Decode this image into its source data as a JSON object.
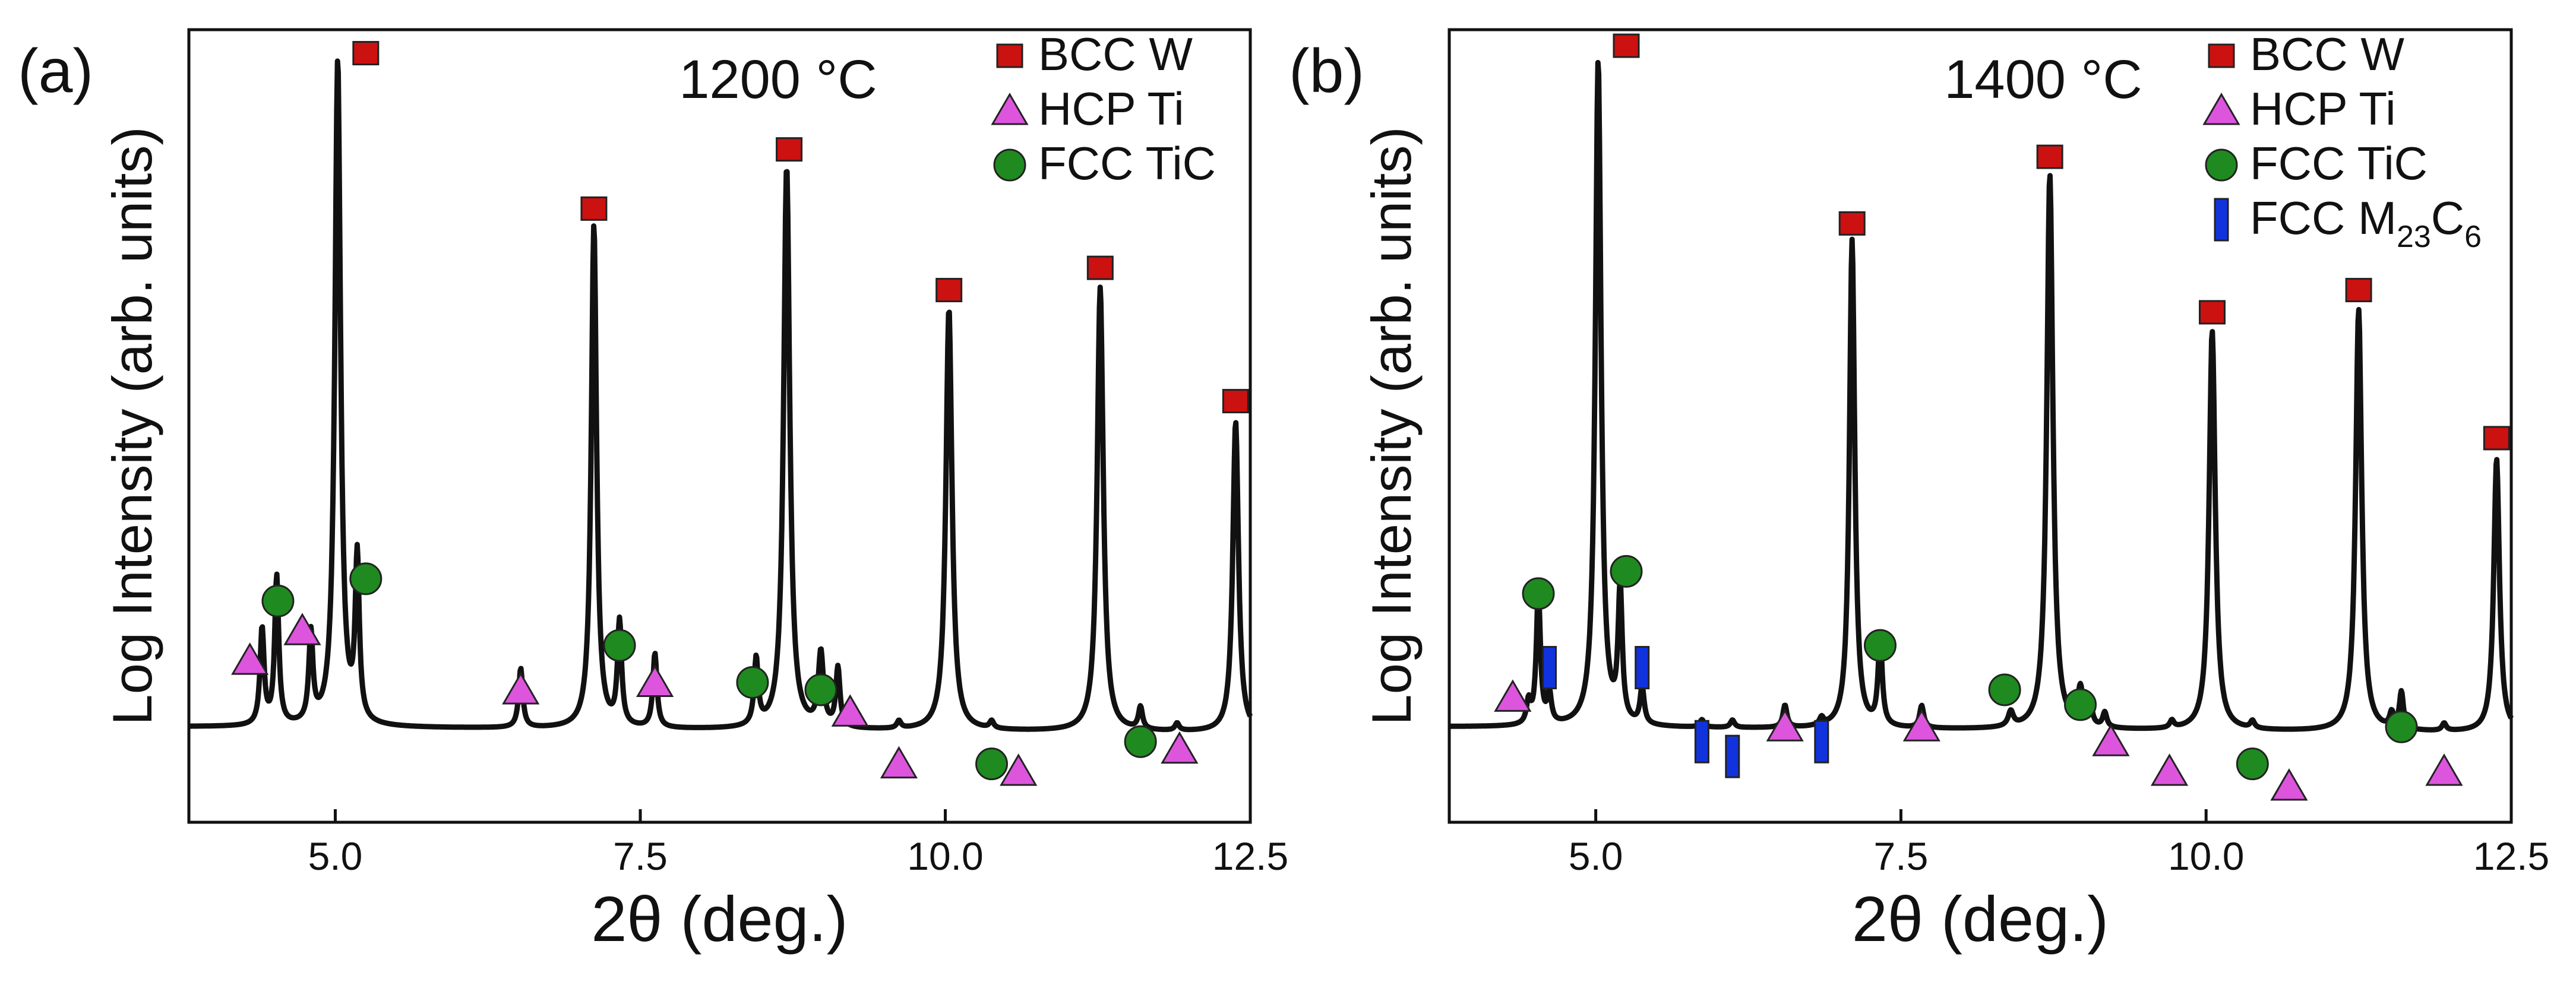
{
  "chart_data": [
    {
      "type": "line",
      "panel_label": "(a)",
      "title": "1200 °C",
      "xlabel": "2θ (deg.)",
      "ylabel": "Log Intensity (arb. units)",
      "xlim": [
        3.8,
        12.5
      ],
      "ylim": [
        0,
        1
      ],
      "xticks": [
        5.0,
        7.5,
        10.0,
        12.5
      ],
      "xtick_labels": [
        "5.0",
        "7.5",
        "10.0",
        "12.5"
      ],
      "grid": false,
      "legend_position": "top-right",
      "baseline": 0.1,
      "peaks": [
        {
          "x": 4.4,
          "y": 0.23,
          "w": 0.02
        },
        {
          "x": 4.52,
          "y": 0.3,
          "w": 0.02
        },
        {
          "x": 4.8,
          "y": 0.22,
          "w": 0.02
        },
        {
          "x": 5.02,
          "y": 1.0,
          "w": 0.028
        },
        {
          "x": 5.18,
          "y": 0.32,
          "w": 0.02
        },
        {
          "x": 6.52,
          "y": 0.18,
          "w": 0.02
        },
        {
          "x": 7.12,
          "y": 0.78,
          "w": 0.026
        },
        {
          "x": 7.33,
          "y": 0.24,
          "w": 0.02
        },
        {
          "x": 7.62,
          "y": 0.2,
          "w": 0.02
        },
        {
          "x": 8.45,
          "y": 0.19,
          "w": 0.02
        },
        {
          "x": 8.7,
          "y": 0.86,
          "w": 0.03
        },
        {
          "x": 8.98,
          "y": 0.2,
          "w": 0.025
        },
        {
          "x": 9.12,
          "y": 0.18,
          "w": 0.02
        },
        {
          "x": 9.62,
          "y": 0.11,
          "w": 0.02
        },
        {
          "x": 10.03,
          "y": 0.67,
          "w": 0.03
        },
        {
          "x": 10.38,
          "y": 0.11,
          "w": 0.02
        },
        {
          "x": 10.62,
          "y": 0.09,
          "w": 0.02
        },
        {
          "x": 11.27,
          "y": 0.7,
          "w": 0.03
        },
        {
          "x": 11.6,
          "y": 0.13,
          "w": 0.02
        },
        {
          "x": 11.9,
          "y": 0.11,
          "w": 0.02
        },
        {
          "x": 12.38,
          "y": 0.52,
          "w": 0.028
        }
      ],
      "series": [
        {
          "name": "BCC W",
          "marker": "square",
          "color": "#cc1111",
          "points": [
            [
              5.25,
              1.01
            ],
            [
              7.12,
              0.8
            ],
            [
              8.72,
              0.88
            ],
            [
              10.03,
              0.69
            ],
            [
              11.27,
              0.72
            ],
            [
              12.38,
              0.54
            ]
          ]
        },
        {
          "name": "HCP Ti",
          "marker": "triangle",
          "color": "#dd55dd",
          "points": [
            [
              4.3,
              0.19
            ],
            [
              4.73,
              0.23
            ],
            [
              6.52,
              0.15
            ],
            [
              7.62,
              0.16
            ],
            [
              9.22,
              0.12
            ],
            [
              9.62,
              0.05
            ],
            [
              10.6,
              0.04
            ],
            [
              11.92,
              0.07
            ]
          ]
        },
        {
          "name": "FCC TiC",
          "marker": "circle",
          "color": "#1f8a1f",
          "points": [
            [
              4.53,
              0.27
            ],
            [
              5.25,
              0.3
            ],
            [
              7.33,
              0.21
            ],
            [
              8.42,
              0.16
            ],
            [
              8.98,
              0.15
            ],
            [
              10.38,
              0.05
            ],
            [
              11.6,
              0.08
            ]
          ]
        }
      ]
    },
    {
      "type": "line",
      "panel_label": "(b)",
      "title": "1400 °C",
      "xlabel": "2θ (deg.)",
      "ylabel": "Log Intensity (arb. units)",
      "xlim": [
        3.8,
        12.5
      ],
      "ylim": [
        0,
        1
      ],
      "xticks": [
        5.0,
        7.5,
        10.0,
        12.5
      ],
      "xtick_labels": [
        "5.0",
        "7.5",
        "10.0",
        "12.5"
      ],
      "grid": false,
      "legend_position": "top-right",
      "baseline": 0.1,
      "peaks": [
        {
          "x": 4.45,
          "y": 0.13,
          "w": 0.02
        },
        {
          "x": 4.53,
          "y": 0.28,
          "w": 0.02
        },
        {
          "x": 4.62,
          "y": 0.14,
          "w": 0.02
        },
        {
          "x": 5.02,
          "y": 1.0,
          "w": 0.028
        },
        {
          "x": 5.2,
          "y": 0.28,
          "w": 0.02
        },
        {
          "x": 5.38,
          "y": 0.15,
          "w": 0.02
        },
        {
          "x": 5.87,
          "y": 0.11,
          "w": 0.02
        },
        {
          "x": 6.12,
          "y": 0.11,
          "w": 0.02
        },
        {
          "x": 6.55,
          "y": 0.13,
          "w": 0.02
        },
        {
          "x": 6.85,
          "y": 0.11,
          "w": 0.02
        },
        {
          "x": 7.1,
          "y": 0.76,
          "w": 0.026
        },
        {
          "x": 7.33,
          "y": 0.22,
          "w": 0.02
        },
        {
          "x": 7.67,
          "y": 0.13,
          "w": 0.02
        },
        {
          "x": 8.4,
          "y": 0.12,
          "w": 0.025
        },
        {
          "x": 8.72,
          "y": 0.85,
          "w": 0.03
        },
        {
          "x": 8.97,
          "y": 0.15,
          "w": 0.025
        },
        {
          "x": 9.05,
          "y": 0.13,
          "w": 0.02
        },
        {
          "x": 9.17,
          "y": 0.12,
          "w": 0.02
        },
        {
          "x": 9.72,
          "y": 0.11,
          "w": 0.02
        },
        {
          "x": 10.05,
          "y": 0.64,
          "w": 0.03
        },
        {
          "x": 10.38,
          "y": 0.11,
          "w": 0.02
        },
        {
          "x": 10.68,
          "y": 0.1,
          "w": 0.02
        },
        {
          "x": 11.25,
          "y": 0.67,
          "w": 0.03
        },
        {
          "x": 11.52,
          "y": 0.12,
          "w": 0.02
        },
        {
          "x": 11.6,
          "y": 0.15,
          "w": 0.02
        },
        {
          "x": 11.95,
          "y": 0.11,
          "w": 0.02
        },
        {
          "x": 12.38,
          "y": 0.47,
          "w": 0.028
        }
      ],
      "series": [
        {
          "name": "BCC W",
          "marker": "square",
          "color": "#cc1111",
          "points": [
            [
              5.25,
              1.02
            ],
            [
              7.1,
              0.78
            ],
            [
              8.72,
              0.87
            ],
            [
              10.05,
              0.66
            ],
            [
              11.25,
              0.69
            ],
            [
              12.38,
              0.49
            ]
          ]
        },
        {
          "name": "HCP Ti",
          "marker": "triangle",
          "color": "#dd55dd",
          "points": [
            [
              4.32,
              0.14
            ],
            [
              6.55,
              0.1
            ],
            [
              7.67,
              0.1
            ],
            [
              9.22,
              0.08
            ],
            [
              9.7,
              0.04
            ],
            [
              10.68,
              0.02
            ],
            [
              11.95,
              0.04
            ]
          ]
        },
        {
          "name": "FCC TiC",
          "marker": "circle",
          "color": "#1f8a1f",
          "points": [
            [
              4.53,
              0.28
            ],
            [
              5.25,
              0.31
            ],
            [
              7.33,
              0.21
            ],
            [
              8.35,
              0.15
            ],
            [
              8.97,
              0.13
            ],
            [
              10.38,
              0.05
            ],
            [
              11.6,
              0.1
            ]
          ]
        },
        {
          "name": "FCC M23C6",
          "legend_main": "FCC M",
          "legend_sub1": "23",
          "legend_mid": "C",
          "legend_sub2": "6",
          "marker": "bar",
          "color": "#1133dd",
          "points": [
            [
              4.62,
              0.18
            ],
            [
              5.38,
              0.18
            ],
            [
              5.87,
              0.08
            ],
            [
              6.12,
              0.06
            ],
            [
              6.85,
              0.08
            ]
          ]
        }
      ]
    }
  ]
}
